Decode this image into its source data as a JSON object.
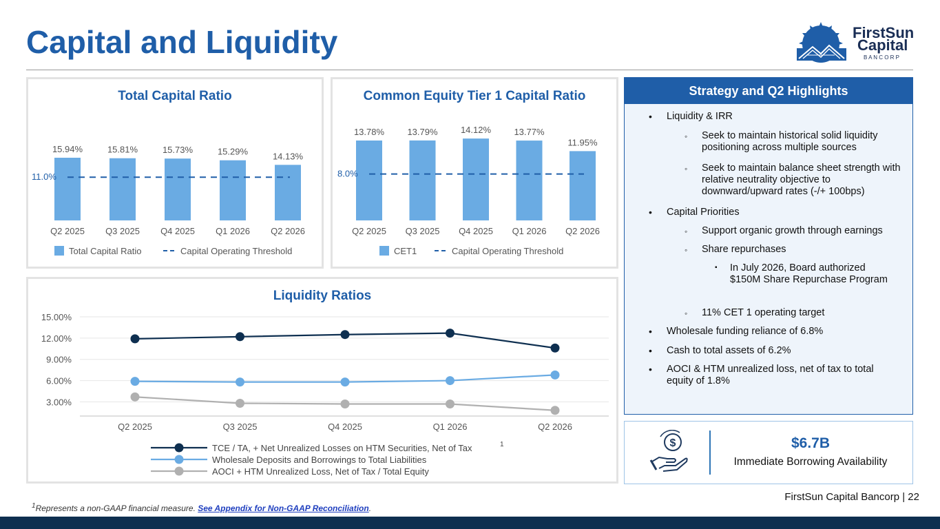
{
  "page": {
    "title": "Capital and Liquidity",
    "footnote_sup": "1",
    "footnote_text": "Represents a non-GAAP financial measure. ",
    "footnote_link": "See Appendix for Non-GAAP Reconciliation",
    "footnote_end": ".",
    "footer": "FirstSun Capital Bancorp  |  22",
    "logo": {
      "line1": "FirstSun",
      "line2": "Capital",
      "line3": "B A N C O R P"
    },
    "colors": {
      "brand_blue": "#1f5ea8",
      "bar_blue": "#6aabe3",
      "dark_navy": "#0e2f50",
      "gray_line": "#b0b0b0"
    }
  },
  "chart_data": [
    {
      "type": "bar",
      "title": "Total Capital Ratio",
      "categories": [
        "Q2 2025",
        "Q3 2025",
        "Q4 2025",
        "Q1 2026",
        "Q2 2026"
      ],
      "series": [
        {
          "name": "Total Capital Ratio",
          "values": [
            15.94,
            15.81,
            15.73,
            15.29,
            14.13
          ],
          "labels": [
            "15.94%",
            "15.81%",
            "15.73%",
            "15.29%",
            "14.13%"
          ]
        }
      ],
      "threshold": {
        "name": "Capital Operating Threshold",
        "value": 11.0,
        "label": "11.0%"
      },
      "ylim": [
        0,
        18
      ],
      "legend": "bottom"
    },
    {
      "type": "bar",
      "title": "Common Equity Tier 1 Capital Ratio",
      "categories": [
        "Q2 2025",
        "Q3 2025",
        "Q4 2025",
        "Q1 2026",
        "Q2 2026"
      ],
      "series": [
        {
          "name": "CET1",
          "values": [
            13.78,
            13.79,
            14.12,
            13.77,
            11.95
          ],
          "labels": [
            "13.78%",
            "13.79%",
            "14.12%",
            "13.77%",
            "11.95%"
          ]
        }
      ],
      "threshold": {
        "name": "Capital Operating Threshold",
        "value": 8.0,
        "label": "8.0%"
      },
      "ylim": [
        0,
        16
      ],
      "legend": "bottom"
    },
    {
      "type": "line",
      "title": "Liquidity Ratios",
      "categories": [
        "Q2 2025",
        "Q3 2025",
        "Q4 2025",
        "Q1 2026",
        "Q2 2026"
      ],
      "ylim": [
        1,
        15
      ],
      "yticks": [
        "15.00%",
        "12.00%",
        "9.00%",
        "6.00%",
        "3.00%"
      ],
      "ytick_values": [
        15,
        12,
        9,
        6,
        3
      ],
      "grid": true,
      "legend": "bottom",
      "series": [
        {
          "name": "TCE /  TA, + Net Unrealized Losses on HTM Securities, Net of Tax",
          "sup": "1",
          "color": "#0e2f50",
          "values": [
            11.9,
            12.2,
            12.5,
            12.7,
            10.6
          ]
        },
        {
          "name": "Wholesale Deposits and Borrowings to Total Liabilities",
          "color": "#6aabe3",
          "values": [
            5.9,
            5.8,
            5.8,
            6.0,
            6.8
          ]
        },
        {
          "name": "AOCI + HTM Unrealized Loss, Net of Tax / Total Equity",
          "color": "#b0b0b0",
          "values": [
            3.7,
            2.8,
            2.7,
            2.7,
            1.8
          ]
        }
      ]
    }
  ],
  "strategy": {
    "heading": "Strategy and Q2 Highlights",
    "items": [
      {
        "level": 1,
        "text": "Liquidity & IRR"
      },
      {
        "level": 2,
        "text": "Seek to maintain historical solid liquidity positioning across multiple sources"
      },
      {
        "level": 2,
        "text": "Seek to maintain balance sheet strength with relative neutrality objective to downward/upward rates (-/+ 100bps)"
      },
      {
        "level": 1,
        "text": "Capital Priorities"
      },
      {
        "level": 2,
        "text": "Support organic growth through earnings"
      },
      {
        "level": 2,
        "text": "Share repurchases"
      },
      {
        "level": 3,
        "text": "In July 2026, Board authorized $150M Share Repurchase Program"
      },
      {
        "level": 2,
        "text": "11% CET 1 operating target"
      },
      {
        "level": 1,
        "text": "Wholesale funding reliance of 6.8%"
      },
      {
        "level": 1,
        "text": "Cash to total assets of 6.2%"
      },
      {
        "level": 1,
        "text": "AOCI & HTM unrealized loss, net of tax to total equity of 1.8%"
      }
    ]
  },
  "borrowing": {
    "value": "$6.7B",
    "label": "Immediate Borrowing Availability",
    "icon": "money-hand-icon"
  }
}
